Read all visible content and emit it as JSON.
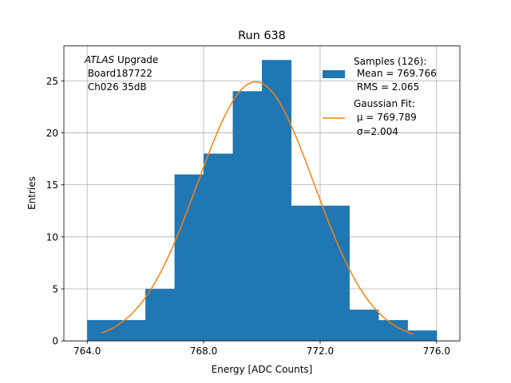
{
  "chart_data": {
    "type": "bar",
    "title": "Run 638",
    "xlabel": "Energy [ADC Counts]",
    "ylabel": "Entries",
    "xlim": [
      763.2,
      776.8
    ],
    "ylim": [
      0,
      28.35
    ],
    "xticks": [
      764.0,
      768.0,
      772.0,
      776.0
    ],
    "xtick_labels": [
      "764.0",
      "768.0",
      "772.0",
      "776.0"
    ],
    "yticks": [
      0,
      5,
      10,
      15,
      20,
      25
    ],
    "ytick_labels": [
      "0",
      "5",
      "10",
      "15",
      "20",
      "25"
    ],
    "grid": true,
    "colors": {
      "hist": "#1f77b4",
      "fit": "#ff7f0e",
      "grid": "#b0b0b0"
    },
    "histogram": {
      "name": "Samples (126):",
      "bin_edges": [
        764,
        765,
        766,
        767,
        768,
        769,
        770,
        771,
        772,
        773,
        774,
        775,
        776
      ],
      "counts": [
        2,
        2,
        5,
        16,
        18,
        24,
        27,
        13,
        13,
        3,
        2,
        1
      ]
    },
    "fit": {
      "type": "gaussian",
      "amplitude": 24.9,
      "mu": 769.789,
      "sigma": 2.004,
      "x_range": [
        764.5,
        775.2
      ]
    },
    "annotation_lines": [
      "ATLAS",
      " Upgrade",
      " Board187722",
      " Ch026 35dB"
    ],
    "legend": {
      "position": "top-right",
      "hist_lines": [
        "Samples (126):",
        " Mean = 769.766",
        " RMS = 2.065"
      ],
      "fit_lines": [
        "Gaussian Fit:",
        " μ = 769.789",
        "σ=2.004"
      ],
      "fit_line3_prefix": " "
    }
  }
}
